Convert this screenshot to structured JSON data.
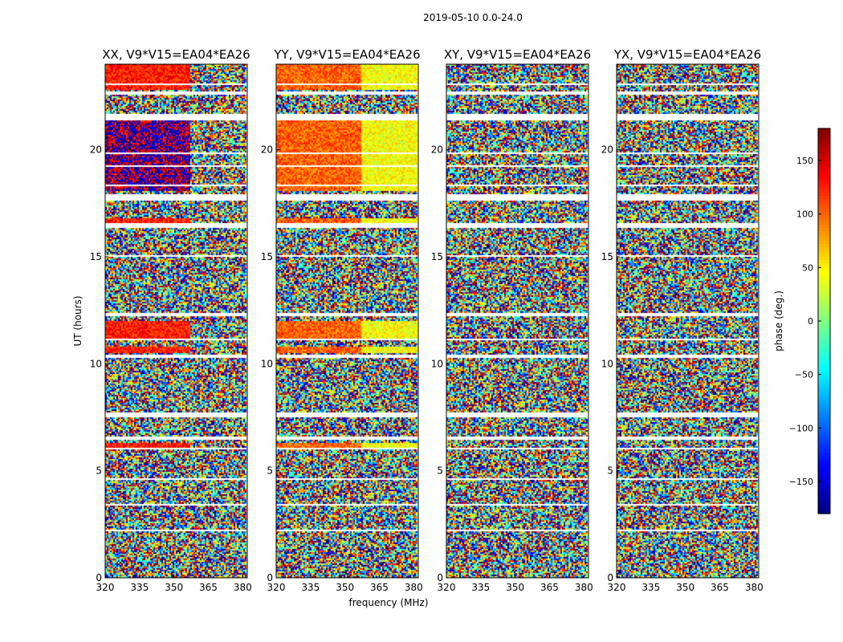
{
  "figure": {
    "title": "2019-05-10 0.0-24.0",
    "ylabel": "UT (hours)",
    "xlabel": "frequency (MHz)"
  },
  "chart_data": {
    "type": "heatmap",
    "title": "2019-05-10 0.0-24.0",
    "xlabel": "frequency (MHz)",
    "ylabel": "UT (hours)",
    "xlim": [
      320,
      382
    ],
    "ylim": [
      0,
      24
    ],
    "x_ticks": [
      320,
      335,
      350,
      365,
      380
    ],
    "y_ticks": [
      0,
      5,
      10,
      15,
      20
    ],
    "panels": [
      {
        "name": "XX",
        "title": "XX, V9*V15=EA04*EA26"
      },
      {
        "name": "YY",
        "title": "YY, V9*V15=EA04*EA26"
      },
      {
        "name": "XY",
        "title": "XY, V9*V15=EA04*EA26"
      },
      {
        "name": "YX",
        "title": "YX, V9*V15=EA04*EA26"
      }
    ],
    "colorbar": {
      "label": "phase (deg.)",
      "range": [
        -180,
        180
      ],
      "ticks": [
        -150,
        -100,
        -50,
        0,
        50,
        100,
        150
      ],
      "colormap": "jet"
    },
    "flagged_hours": [
      [
        21.4,
        21.7
      ],
      [
        17.65,
        17.9
      ],
      [
        16.35,
        16.55
      ],
      [
        12.2,
        12.4
      ],
      [
        11.1,
        11.2
      ],
      [
        10.25,
        10.45
      ],
      [
        7.5,
        7.7
      ],
      [
        6.45,
        6.6
      ],
      [
        6.0,
        6.1
      ],
      [
        23.0,
        23.1
      ],
      [
        22.6,
        22.7
      ],
      [
        19.8,
        19.9
      ],
      [
        19.2,
        19.25
      ],
      [
        18.3,
        18.35
      ],
      [
        15.0,
        15.05
      ],
      [
        14.3,
        14.35
      ],
      [
        13.1,
        13.15
      ],
      [
        9.2,
        9.25
      ],
      [
        8.6,
        8.65
      ],
      [
        4.6,
        4.65
      ],
      [
        3.4,
        3.45
      ],
      [
        2.2,
        2.25
      ],
      [
        1.1,
        1.15
      ]
    ],
    "coherent_hours": [
      [
        18.1,
        21.4
      ],
      [
        16.6,
        16.8
      ],
      [
        11.2,
        12.0
      ],
      [
        10.5,
        10.8
      ],
      [
        6.1,
        6.3
      ],
      [
        22.8,
        24.0
      ]
    ]
  }
}
